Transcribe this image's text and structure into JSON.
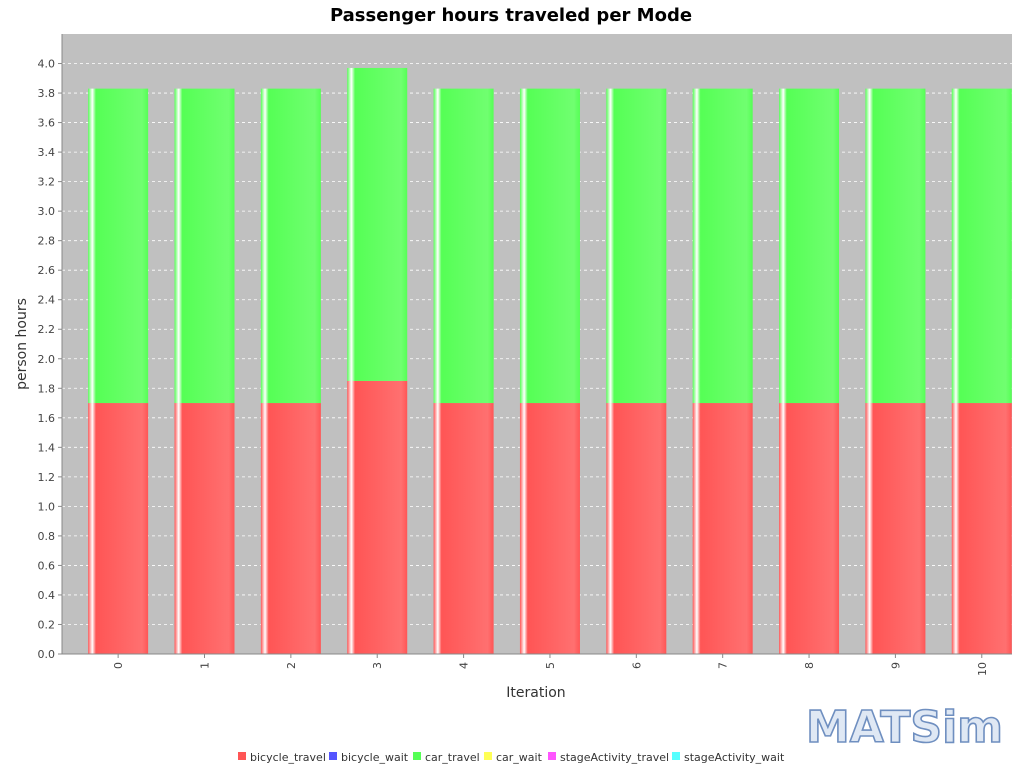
{
  "chart_data": {
    "type": "bar",
    "stacked": true,
    "title": "Passenger hours traveled per Mode",
    "xlabel": "Iteration",
    "ylabel": "person hours",
    "ylim": [
      0,
      4.2
    ],
    "yticks": [
      "0.0",
      "0.2",
      "0.4",
      "0.6",
      "0.8",
      "1.0",
      "1.2",
      "1.4",
      "1.6",
      "1.8",
      "2.0",
      "2.2",
      "2.4",
      "2.6",
      "2.8",
      "3.0",
      "3.2",
      "3.4",
      "3.6",
      "3.8",
      "4.0"
    ],
    "categories": [
      "0",
      "1",
      "2",
      "3",
      "4",
      "5",
      "6",
      "7",
      "8",
      "9",
      "10"
    ],
    "series": [
      {
        "name": "bicycle_travel",
        "color": "#ff5555",
        "values": [
          1.7,
          1.7,
          1.7,
          1.85,
          1.7,
          1.7,
          1.7,
          1.7,
          1.7,
          1.7,
          1.7
        ]
      },
      {
        "name": "bicycle_wait",
        "color": "#5555ff",
        "values": [
          0,
          0,
          0,
          0,
          0,
          0,
          0,
          0,
          0,
          0,
          0
        ]
      },
      {
        "name": "car_travel",
        "color": "#55ff55",
        "values": [
          2.13,
          2.13,
          2.13,
          2.12,
          2.13,
          2.13,
          2.13,
          2.13,
          2.13,
          2.13,
          2.13
        ]
      },
      {
        "name": "car_wait",
        "color": "#ffff55",
        "values": [
          0,
          0,
          0,
          0,
          0,
          0,
          0,
          0,
          0,
          0,
          0
        ]
      },
      {
        "name": "stageActivity_travel",
        "color": "#ff55ff",
        "values": [
          0,
          0,
          0,
          0,
          0,
          0,
          0,
          0,
          0,
          0,
          0
        ]
      },
      {
        "name": "stageActivity_wait",
        "color": "#55ffff",
        "values": [
          0,
          0,
          0,
          0,
          0,
          0,
          0,
          0,
          0,
          0,
          0
        ]
      }
    ],
    "grid": true,
    "legend_position": "bottom"
  },
  "logo": {
    "text": "MATSim"
  },
  "colors": {
    "plot_background": "#c0c0c0",
    "gridline": "#ffffff"
  }
}
